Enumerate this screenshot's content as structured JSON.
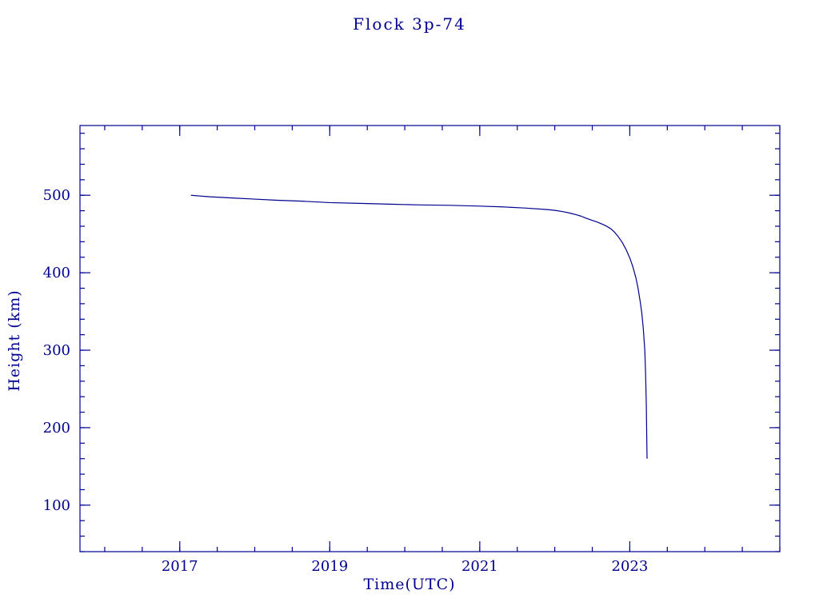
{
  "title": "Flock 3p-74",
  "colors": {
    "accent": "#00008f",
    "background": "#ffffff"
  },
  "chart_data": {
    "type": "line",
    "title": "Flock 3p-74",
    "xlabel": "Time(UTC)",
    "ylabel": "Height (km)",
    "xlim": [
      2015.67,
      2025.0
    ],
    "ylim": [
      40,
      590
    ],
    "xticks_major": [
      2017,
      2019,
      2021,
      2023
    ],
    "xtick_labels": [
      "2017",
      "2019",
      "2021",
      "2023"
    ],
    "x_minor_step": 0.5,
    "yticks_major": [
      100,
      200,
      300,
      400,
      500
    ],
    "ytick_labels": [
      "100",
      "200",
      "300",
      "400",
      "500"
    ],
    "y_minor_step": 20,
    "line_color": "#00008f",
    "grid": false,
    "legend": "none",
    "series": [
      {
        "name": "height",
        "x": [
          2017.15,
          2017.4,
          2017.7,
          2018.0,
          2018.3,
          2018.6,
          2019.0,
          2019.4,
          2019.8,
          2020.2,
          2020.6,
          2021.0,
          2021.3,
          2021.6,
          2021.9,
          2022.0,
          2022.1,
          2022.2,
          2022.3,
          2022.35,
          2022.4,
          2022.5,
          2022.55,
          2022.6,
          2022.65,
          2022.7,
          2022.75,
          2022.8,
          2022.85,
          2022.9,
          2022.95,
          2023.0,
          2023.04,
          2023.08,
          2023.11,
          2023.14,
          2023.16,
          2023.18,
          2023.2,
          2023.21,
          2023.22,
          2023.23
        ],
        "y": [
          500,
          498,
          496.5,
          495,
          493.5,
          492.5,
          490.5,
          489.5,
          488.5,
          487.5,
          487,
          486,
          485,
          483.5,
          481.5,
          480.5,
          479,
          477,
          474.5,
          473,
          471,
          467.5,
          466,
          464,
          462,
          459.5,
          456.5,
          452,
          446,
          439,
          430,
          419,
          408,
          394,
          380,
          362,
          348,
          328,
          300,
          272,
          230,
          160
        ]
      }
    ]
  }
}
